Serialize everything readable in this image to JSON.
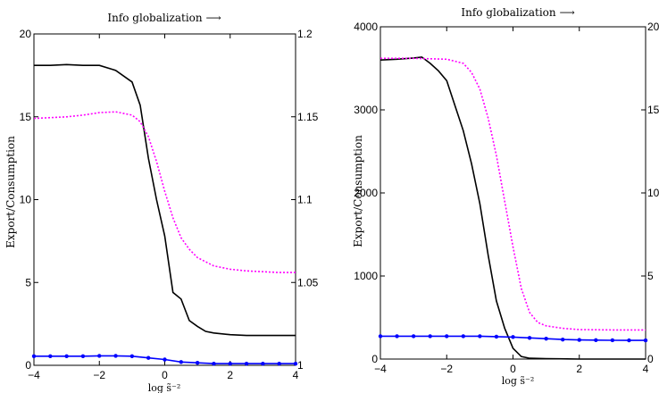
{
  "chart_data": [
    {
      "type": "line",
      "title": "Info globalization ⟶",
      "xlabel": "log s̃⁻²",
      "ylabel": "Export/Consumption",
      "xlim": [
        -4,
        4
      ],
      "ylim": [
        0,
        20
      ],
      "y2lim": [
        1.0,
        1.2
      ],
      "x_ticks": [
        "−4",
        "−2",
        "0",
        "2",
        "4"
      ],
      "y_ticks": [
        "0",
        "5",
        "10",
        "15",
        "20"
      ],
      "y2_ticks": [
        "1",
        "1.05",
        "1.1",
        "1.15",
        "1.2"
      ],
      "grid": false,
      "series": [
        {
          "color": "#000000",
          "style": "solid",
          "axis": "right",
          "x": [
            -4,
            -3.5,
            -3,
            -2.5,
            -2,
            -1.5,
            -1.0,
            -0.75,
            -0.5,
            -0.25,
            0,
            0.25,
            0.5,
            0.75,
            1.0,
            1.25,
            1.5,
            2,
            2.5,
            3,
            3.5,
            4
          ],
          "values": [
            1.181,
            1.181,
            1.1815,
            1.181,
            1.181,
            1.178,
            1.171,
            1.157,
            1.125,
            1.1,
            1.078,
            1.044,
            1.04,
            1.027,
            1.0235,
            1.0205,
            1.0195,
            1.0185,
            1.018,
            1.018,
            1.018,
            1.018
          ]
        },
        {
          "color": "#ff00ff",
          "style": "dotted",
          "axis": "left",
          "x": [
            -4,
            -3.5,
            -3,
            -2.5,
            -2,
            -1.5,
            -1.0,
            -0.75,
            -0.5,
            -0.25,
            0,
            0.25,
            0.5,
            0.75,
            1.0,
            1.5,
            2,
            2.5,
            3,
            3.5,
            4
          ],
          "values": [
            14.9,
            14.95,
            15.0,
            15.1,
            15.25,
            15.3,
            15.1,
            14.7,
            13.8,
            12.3,
            10.5,
            8.9,
            7.7,
            7.0,
            6.5,
            6.0,
            5.8,
            5.7,
            5.65,
            5.6,
            5.6
          ]
        },
        {
          "color": "#0000ff",
          "style": "solid-markers",
          "axis": "left",
          "x": [
            -4,
            -3.5,
            -3,
            -2.5,
            -2,
            -1.5,
            -1.0,
            -0.5,
            0,
            0.5,
            1.0,
            1.5,
            2.0,
            2.5,
            3.0,
            3.5,
            4.0
          ],
          "values": [
            0.55,
            0.55,
            0.55,
            0.55,
            0.57,
            0.57,
            0.55,
            0.45,
            0.35,
            0.2,
            0.15,
            0.1,
            0.1,
            0.1,
            0.1,
            0.1,
            0.1
          ]
        }
      ]
    },
    {
      "type": "line",
      "title": "Info globalization ⟶",
      "xlabel": "log s̃⁻²",
      "ylabel": "Export/Consumption",
      "xlim": [
        -4,
        4
      ],
      "ylim": [
        0,
        4000
      ],
      "y2lim": [
        0,
        20
      ],
      "x_ticks": [
        "−4",
        "−2",
        "0",
        "2",
        "4"
      ],
      "y_ticks": [
        "0",
        "1000",
        "2000",
        "3000",
        "4000"
      ],
      "y2_ticks": [
        "0",
        "5",
        "10",
        "15",
        "20"
      ],
      "grid": false,
      "series": [
        {
          "color": "#000000",
          "style": "solid",
          "axis": "left",
          "x": [
            -4,
            -3.5,
            -3,
            -2.75,
            -2.5,
            -2.25,
            -2,
            -1.5,
            -1.25,
            -1.0,
            -0.75,
            -0.5,
            -0.25,
            0,
            0.25,
            0.5,
            1.0,
            2.0,
            3.0,
            4.0
          ],
          "values": [
            3600,
            3610,
            3625,
            3635,
            3560,
            3470,
            3350,
            2750,
            2350,
            1870,
            1250,
            700,
            370,
            130,
            30,
            10,
            5,
            0,
            0,
            0
          ]
        },
        {
          "color": "#ff00ff",
          "style": "dotted",
          "axis": "left",
          "x": [
            -4,
            -3.5,
            -3,
            -2.5,
            -2,
            -1.5,
            -1.25,
            -1.0,
            -0.75,
            -0.5,
            -0.25,
            0,
            0.25,
            0.5,
            0.75,
            1.0,
            1.5,
            2,
            3,
            4
          ],
          "values": [
            3620,
            3620,
            3620,
            3615,
            3610,
            3560,
            3450,
            3250,
            2900,
            2450,
            1900,
            1350,
            850,
            560,
            440,
            400,
            370,
            355,
            350,
            350
          ]
        },
        {
          "color": "#0000ff",
          "style": "solid-markers",
          "axis": "left",
          "x": [
            -4,
            -3.5,
            -3,
            -2.5,
            -2,
            -1.5,
            -1.0,
            -0.5,
            0,
            0.5,
            1.0,
            1.5,
            2.0,
            2.5,
            3.0,
            3.5,
            4.0
          ],
          "values": [
            275,
            275,
            275,
            275,
            275,
            275,
            275,
            270,
            265,
            255,
            245,
            235,
            230,
            228,
            226,
            225,
            225
          ]
        }
      ]
    }
  ]
}
